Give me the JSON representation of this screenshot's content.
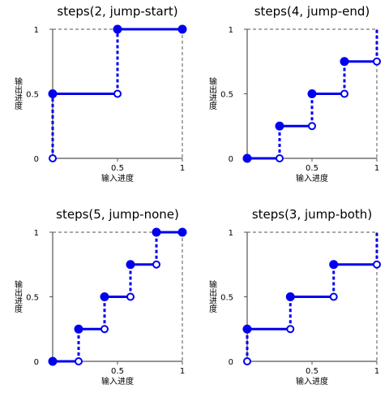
{
  "chart_data": [
    {
      "type": "line",
      "title": "steps(2, jump-start)",
      "xlabel": "输入进度",
      "ylabel": "输出进度",
      "xlim": [
        0,
        1
      ],
      "ylim": [
        0,
        1
      ],
      "x_ticks": [
        "0.5",
        "1"
      ],
      "y_ticks": [
        "1",
        "0.5",
        "0"
      ],
      "steps": [
        [
          0,
          0.5,
          0.5
        ],
        [
          0.5,
          1,
          1
        ]
      ],
      "open_points": [
        [
          0,
          0
        ],
        [
          0.5,
          0.5
        ]
      ],
      "closed_points": [
        [
          0,
          0.5
        ],
        [
          0.5,
          1
        ],
        [
          1,
          1
        ]
      ],
      "jumps": [
        [
          0,
          0,
          0.5
        ],
        [
          0.5,
          0.5,
          1
        ]
      ]
    },
    {
      "type": "line",
      "title": "steps(4, jump-end)",
      "xlabel": "输入进度",
      "ylabel": "输出进度",
      "xlim": [
        0,
        1
      ],
      "ylim": [
        0,
        1
      ],
      "x_ticks": [
        "0.5",
        "1"
      ],
      "y_ticks": [
        "1",
        "0.5",
        "0"
      ],
      "steps": [
        [
          0,
          0.25,
          0
        ],
        [
          0.25,
          0.5,
          0.25
        ],
        [
          0.5,
          0.75,
          0.5
        ],
        [
          0.75,
          1,
          0.75
        ]
      ],
      "open_points": [
        [
          0.25,
          0
        ],
        [
          0.5,
          0.25
        ],
        [
          0.75,
          0.5
        ],
        [
          1,
          0.75
        ]
      ],
      "closed_points": [
        [
          0,
          0
        ],
        [
          0.25,
          0.25
        ],
        [
          0.5,
          0.5
        ],
        [
          0.75,
          0.75
        ]
      ],
      "jumps": [
        [
          0.25,
          0,
          0.25
        ],
        [
          0.5,
          0.25,
          0.5
        ],
        [
          0.75,
          0.5,
          0.75
        ],
        [
          1,
          0.75,
          1
        ]
      ]
    },
    {
      "type": "line",
      "title": "steps(5, jump-none)",
      "xlabel": "输入进度",
      "ylabel": "输出进度",
      "xlim": [
        0,
        1
      ],
      "ylim": [
        0,
        1
      ],
      "x_ticks": [
        "0.5",
        "1"
      ],
      "y_ticks": [
        "1",
        "0.5",
        "0"
      ],
      "steps": [
        [
          0,
          0.2,
          0
        ],
        [
          0.2,
          0.4,
          0.25
        ],
        [
          0.4,
          0.6,
          0.5
        ],
        [
          0.6,
          0.8,
          0.75
        ],
        [
          0.8,
          1,
          1
        ]
      ],
      "open_points": [
        [
          0.2,
          0
        ],
        [
          0.4,
          0.25
        ],
        [
          0.6,
          0.5
        ],
        [
          0.8,
          0.75
        ]
      ],
      "closed_points": [
        [
          0,
          0
        ],
        [
          0.2,
          0.25
        ],
        [
          0.4,
          0.5
        ],
        [
          0.6,
          0.75
        ],
        [
          0.8,
          1
        ],
        [
          1,
          1
        ]
      ],
      "jumps": [
        [
          0.2,
          0,
          0.25
        ],
        [
          0.4,
          0.25,
          0.5
        ],
        [
          0.6,
          0.5,
          0.75
        ],
        [
          0.8,
          0.75,
          1
        ]
      ]
    },
    {
      "type": "line",
      "title": "steps(3, jump-both)",
      "xlabel": "输入进度",
      "ylabel": "输出进度",
      "xlim": [
        0,
        1
      ],
      "ylim": [
        0,
        1
      ],
      "x_ticks": [
        "0.5",
        "1"
      ],
      "y_ticks": [
        "1",
        "0.5",
        "0"
      ],
      "steps": [
        [
          0,
          0.333,
          0.25
        ],
        [
          0.333,
          0.667,
          0.5
        ],
        [
          0.667,
          1,
          0.75
        ]
      ],
      "open_points": [
        [
          0,
          0
        ],
        [
          0.333,
          0.25
        ],
        [
          0.667,
          0.5
        ],
        [
          1,
          0.75
        ]
      ],
      "closed_points": [
        [
          0,
          0.25
        ],
        [
          0.333,
          0.5
        ],
        [
          0.667,
          0.75
        ]
      ],
      "jumps": [
        [
          0,
          0,
          0.25
        ],
        [
          0.333,
          0.25,
          0.5
        ],
        [
          0.667,
          0.5,
          0.75
        ],
        [
          1,
          0.75,
          1
        ]
      ]
    }
  ],
  "colors": {
    "series": "#0000ee",
    "axis": "#555555",
    "grid": "#555555"
  }
}
